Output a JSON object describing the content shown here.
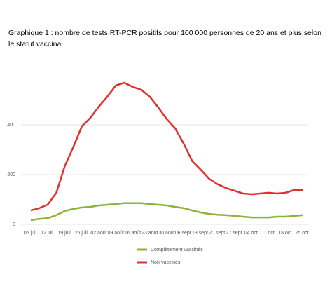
{
  "chart_data": {
    "type": "line",
    "title": [
      "Graphique 1 : nombre de tests RT-PCR positifs pour 100 000 personnes de 20 ans et plus selon",
      "le statut vaccinal"
    ],
    "categories": [
      "05 juil.",
      null,
      "12 juil.",
      null,
      "19 juil.",
      null,
      "26 juil.",
      null,
      "02 août",
      null,
      "09 août",
      null,
      "16 août",
      null,
      "23 août",
      null,
      "30 août",
      null,
      "06 sept.",
      null,
      "13 sept.",
      null,
      "20 sept.",
      null,
      "27 sept.",
      null,
      "04 oct.",
      null,
      "11 oct.",
      null,
      "18 oct.",
      null,
      "25 oct."
    ],
    "series": [
      {
        "name": "Complètement vaccinés",
        "color": "#8db33a",
        "values": [
          17,
          22,
          25,
          37,
          54,
          62,
          68,
          70,
          76,
          79,
          82,
          85,
          85,
          85,
          82,
          79,
          76,
          70,
          65,
          56,
          48,
          42,
          39,
          37,
          34,
          31,
          28,
          28,
          28,
          31,
          31,
          34,
          37
        ]
      },
      {
        "name": "Non-vaccinés",
        "color": "#e03030",
        "values": [
          56,
          65,
          80,
          127,
          234,
          310,
          394,
          428,
          473,
          513,
          558,
          569,
          552,
          541,
          513,
          470,
          423,
          386,
          324,
          254,
          220,
          183,
          161,
          146,
          135,
          124,
          121,
          124,
          127,
          124,
          127,
          138,
          138
        ]
      }
    ],
    "ylim": [
      0,
      600
    ],
    "yticks": [
      0,
      200,
      400
    ],
    "grid": true,
    "legend": "bottom"
  }
}
